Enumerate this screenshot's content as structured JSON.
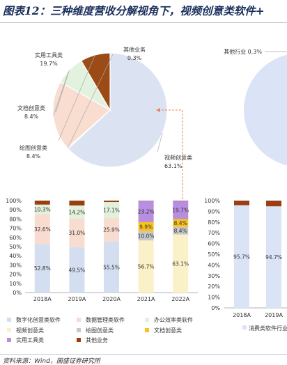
{
  "title": "图表12：三种维度营收分解视角下，视频创意类软件+",
  "source": "资料来源：Wind，国盛证券研究所",
  "colors": {
    "video": "#dbe3f2",
    "tools": "#f8ddd0",
    "docs": "#e3f2df",
    "drawing": "#9c4a16",
    "other": "#d7d7d7",
    "digital": "#d3def0",
    "data_mgmt": "#f8dcd0",
    "office": "#e2f1dc",
    "video_bar": "#fbf1c8",
    "draw_bar": "#c8c8c8",
    "doc_bar": "#f9c21e",
    "tools_bar": "#b78ee0",
    "other_bar": "#9a3e11",
    "consumer": "#dbe3f6",
    "accent": "#9b3f12"
  },
  "chart_data": [
    {
      "type": "pie",
      "labels": [
        "视频创意类",
        "其他业务",
        "实用工具类",
        "文档创意类",
        "绘图创意类"
      ],
      "values": [
        63.1,
        0.3,
        19.7,
        8.4,
        8.4
      ],
      "value_labels": [
        "63.1%",
        "0.3%",
        "19.7%",
        "8.4%",
        "8.4%"
      ]
    },
    {
      "type": "bar",
      "stacked": true,
      "categories": [
        "2018A",
        "2019A",
        "2020A",
        "2021A",
        "2022A"
      ],
      "ylim": [
        0,
        100
      ],
      "yticks": [
        "0%",
        "10%",
        "20%",
        "30%",
        "40%",
        "50%",
        "60%",
        "70%",
        "80%",
        "90%",
        "100%"
      ],
      "series": [
        {
          "name": "数字化创意类软件",
          "values": [
            52.8,
            49.5,
            55.5,
            0,
            0
          ]
        },
        {
          "name": "视频创意类",
          "values": [
            0,
            0,
            0,
            56.7,
            63.1
          ]
        },
        {
          "name": "数据管理类软件",
          "values": [
            32.6,
            31.0,
            25.9,
            0,
            0
          ]
        },
        {
          "name": "绘图创意类",
          "values": [
            0,
            0,
            0,
            10.0,
            8.4
          ]
        },
        {
          "name": "文档创意类",
          "values": [
            0,
            0,
            0,
            9.9,
            8.4
          ]
        },
        {
          "name": "办公效率类软件",
          "values": [
            10.3,
            14.2,
            17.1,
            0,
            0
          ]
        },
        {
          "name": "实用工具类",
          "values": [
            0,
            0,
            0,
            23.2,
            19.7
          ]
        },
        {
          "name": "其他业务",
          "values": [
            4.3,
            5.3,
            1.5,
            0.2,
            0.3
          ]
        }
      ],
      "data_labels": [
        [
          "52.8%",
          "32.6%",
          "10.3%"
        ],
        [
          "49.5%",
          "31.0%",
          "14.2%"
        ],
        [
          "55.5%",
          "25.9%",
          "17.1%"
        ],
        [
          "56.7%",
          "10.0%",
          "9.9%",
          "23.2%"
        ],
        [
          "63.1%",
          "8.4%",
          "8.4%",
          "19.7%"
        ]
      ]
    },
    {
      "type": "pie",
      "labels": [
        "其他行业"
      ],
      "values": [
        0.3
      ],
      "value_labels": [
        "0.3%"
      ]
    },
    {
      "type": "bar",
      "stacked": true,
      "categories": [
        "2018A",
        "2019A"
      ],
      "ylim": [
        0,
        100
      ],
      "yticks": [
        "0%",
        "10%",
        "20%",
        "30%",
        "40%",
        "50%",
        "60%",
        "70%",
        "80%",
        "90%",
        "100%"
      ],
      "series": [
        {
          "name": "消费类软件行业",
          "values": [
            95.7,
            94.7
          ]
        },
        {
          "name": "",
          "values": [
            4.3,
            5.3
          ]
        }
      ],
      "data_labels": [
        [
          "95.7%",
          "4.3%"
        ],
        [
          "94.7%",
          "5.3%"
        ]
      ]
    }
  ]
}
